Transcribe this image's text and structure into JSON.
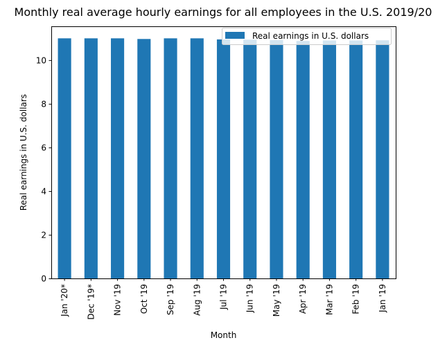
{
  "chart_data": {
    "type": "bar",
    "title": "Monthly real average hourly earnings for all employees in the U.S. 2019/20",
    "xlabel": "Month",
    "ylabel": "Real earnings in U.S. dollars",
    "categories": [
      "Jan '20*",
      "Dec '19*",
      "Nov '19",
      "Oct '19",
      "Sep '19",
      "Aug '19",
      "Jul '19",
      "Jun '19",
      "May '19",
      "Apr '19",
      "Mar '19",
      "Feb '19",
      "Jan '19"
    ],
    "series": [
      {
        "name": "Real earnings in U.S. dollars",
        "color": "#1f77b4",
        "values": [
          11.0,
          11.0,
          11.0,
          10.97,
          11.0,
          11.0,
          10.95,
          10.94,
          10.92,
          10.88,
          10.9,
          10.9,
          10.91
        ]
      }
    ],
    "ylim": [
      0,
      11.55
    ],
    "yticks": [
      0,
      2,
      4,
      6,
      8,
      10
    ],
    "grid": false,
    "legend_position": "top-right"
  }
}
